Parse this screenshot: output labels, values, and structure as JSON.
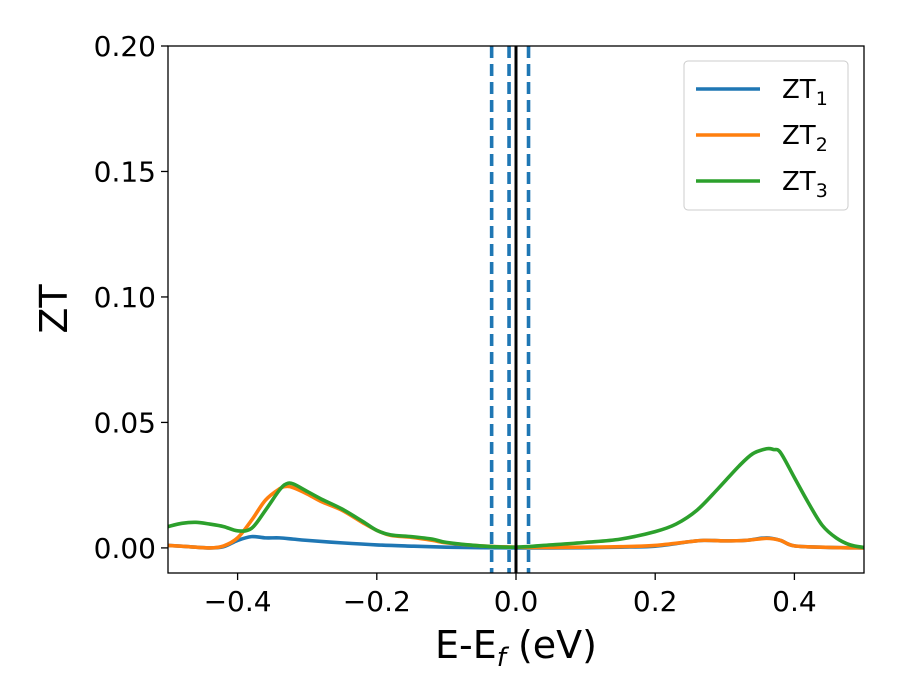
{
  "chart_data": {
    "type": "line",
    "xlabel": "E-E",
    "xlabel_sub": "f",
    "xlabel_unit": " (eV)",
    "ylabel": "ZT",
    "xlim": [
      -0.5,
      0.5
    ],
    "ylim": [
      -0.01,
      0.2
    ],
    "xticks": [
      -0.4,
      -0.2,
      0.0,
      0.2,
      0.4
    ],
    "xtick_labels": [
      "−0.4",
      "−0.2",
      "0.0",
      "0.2",
      "0.4"
    ],
    "yticks": [
      0.0,
      0.05,
      0.1,
      0.15,
      0.2
    ],
    "ytick_labels": [
      "0.00",
      "0.05",
      "0.10",
      "0.15",
      "0.20"
    ],
    "grid": false,
    "legend_position": "top-right",
    "series": [
      {
        "name": "ZT",
        "name_sub": "1",
        "color": "#1f77b4",
        "x": [
          -0.5,
          -0.47,
          -0.44,
          -0.42,
          -0.4,
          -0.38,
          -0.36,
          -0.34,
          -0.32,
          -0.3,
          -0.25,
          -0.2,
          -0.15,
          -0.1,
          -0.05,
          0.0,
          0.05,
          0.1,
          0.15,
          0.2,
          0.25,
          0.27,
          0.3,
          0.33,
          0.36,
          0.38,
          0.4,
          0.45,
          0.5
        ],
        "y": [
          0.001,
          0.0005,
          0.0,
          0.0005,
          0.003,
          0.0045,
          0.004,
          0.004,
          0.0035,
          0.003,
          0.002,
          0.0012,
          0.0007,
          0.0003,
          0.0001,
          0.0,
          0.0,
          0.0001,
          0.0003,
          0.0007,
          0.0025,
          0.003,
          0.0028,
          0.003,
          0.004,
          0.003,
          0.0008,
          0.0002,
          0.0
        ]
      },
      {
        "name": "ZT",
        "name_sub": "2",
        "color": "#ff7f0e",
        "x": [
          -0.5,
          -0.47,
          -0.44,
          -0.42,
          -0.4,
          -0.38,
          -0.36,
          -0.34,
          -0.33,
          -0.32,
          -0.3,
          -0.28,
          -0.25,
          -0.22,
          -0.2,
          -0.18,
          -0.15,
          -0.12,
          -0.1,
          -0.05,
          0.0,
          0.05,
          0.1,
          0.15,
          0.2,
          0.25,
          0.27,
          0.3,
          0.33,
          0.36,
          0.38,
          0.4,
          0.45,
          0.5
        ],
        "y": [
          0.001,
          0.0005,
          0.0,
          0.0008,
          0.004,
          0.011,
          0.019,
          0.0235,
          0.0245,
          0.024,
          0.0215,
          0.0185,
          0.015,
          0.01,
          0.007,
          0.005,
          0.0042,
          0.003,
          0.002,
          0.0008,
          0.0003,
          0.0002,
          0.0003,
          0.0005,
          0.001,
          0.0025,
          0.003,
          0.0028,
          0.003,
          0.0038,
          0.003,
          0.0008,
          0.0002,
          0.0
        ]
      },
      {
        "name": "ZT",
        "name_sub": "3",
        "color": "#2ca02c",
        "x": [
          -0.5,
          -0.48,
          -0.46,
          -0.44,
          -0.42,
          -0.4,
          -0.38,
          -0.36,
          -0.34,
          -0.33,
          -0.32,
          -0.3,
          -0.28,
          -0.25,
          -0.22,
          -0.2,
          -0.18,
          -0.15,
          -0.12,
          -0.1,
          -0.05,
          0.0,
          0.05,
          0.1,
          0.15,
          0.2,
          0.23,
          0.26,
          0.29,
          0.32,
          0.34,
          0.36,
          0.37,
          0.38,
          0.4,
          0.42,
          0.44,
          0.46,
          0.48,
          0.5
        ],
        "y": [
          0.0085,
          0.0098,
          0.0102,
          0.0095,
          0.0085,
          0.0068,
          0.0078,
          0.015,
          0.023,
          0.0255,
          0.0255,
          0.0225,
          0.0195,
          0.0155,
          0.0105,
          0.007,
          0.0052,
          0.0045,
          0.0035,
          0.0022,
          0.0008,
          0.0003,
          0.0012,
          0.0022,
          0.0035,
          0.0065,
          0.0095,
          0.015,
          0.0235,
          0.0325,
          0.0375,
          0.0395,
          0.0392,
          0.038,
          0.028,
          0.018,
          0.009,
          0.004,
          0.0012,
          0.0002
        ]
      }
    ],
    "vlines": [
      {
        "x": -0.035,
        "style": "dashed",
        "color": "#1f77b4"
      },
      {
        "x": -0.01,
        "style": "dashed",
        "color": "#1f77b4"
      },
      {
        "x": 0.0,
        "style": "solid",
        "color": "#000000"
      },
      {
        "x": 0.018,
        "style": "dashed",
        "color": "#1f77b4"
      }
    ]
  }
}
